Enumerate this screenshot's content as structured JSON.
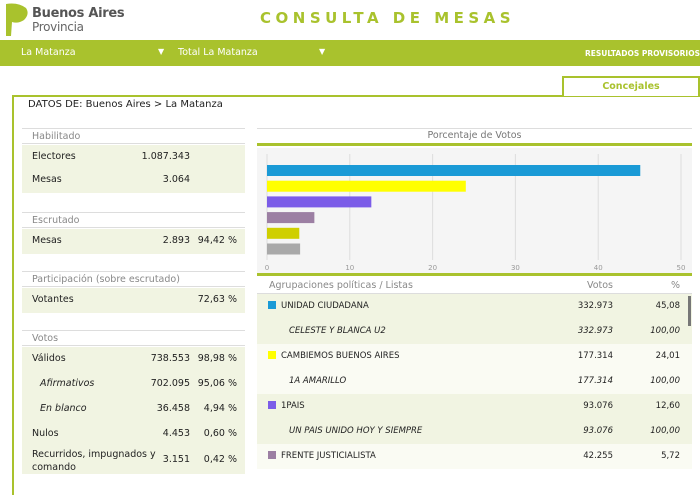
{
  "brand": {
    "line1": "Buenos Aires",
    "line2": "Provincia"
  },
  "header": {
    "title": "CONSULTA DE MESAS"
  },
  "nav": {
    "district": "La Matanza",
    "scope": "Total La Matanza",
    "status": "RESULTADOS PROVISORIOS"
  },
  "tab": "Concejales",
  "breadcrumb": "DATOS DE: Buenos Aires > La Matanza",
  "sections": [
    {
      "title": "Habilitado",
      "rows": [
        {
          "label": "Electores",
          "value": "1.087.343",
          "pct": ""
        },
        {
          "label": "Mesas",
          "value": "3.064",
          "pct": ""
        }
      ]
    },
    {
      "title": "Escrutado",
      "rows": [
        {
          "label": "Mesas",
          "value": "2.893",
          "pct": "94,42 %"
        }
      ]
    },
    {
      "title": "Participación (sobre escrutado)",
      "rows": [
        {
          "label": "Votantes",
          "value": "",
          "pct": "72,63 %"
        }
      ]
    },
    {
      "title": "Votos",
      "rows": [
        {
          "label": "Válidos",
          "value": "738.553",
          "pct": "98,98 %"
        },
        {
          "label": "Afirmativos",
          "value": "702.095",
          "pct": "95,06 %",
          "italic": true
        },
        {
          "label": "En blanco",
          "value": "36.458",
          "pct": "4,94 %",
          "italic": true
        },
        {
          "label": "Nulos",
          "value": "4.453",
          "pct": "0,60 %"
        },
        {
          "label": "Recurridos, impugnados y comando",
          "value": "3.151",
          "pct": "0,42 %"
        }
      ]
    }
  ],
  "chart_data": {
    "type": "bar",
    "orientation": "horizontal",
    "title": "Porcentaje de Votos",
    "xlim": [
      0,
      50
    ],
    "ticks": [
      "0",
      "10",
      "20",
      "30",
      "40",
      "50"
    ],
    "grid": true,
    "values": [
      45.08,
      24.01,
      12.6,
      5.72,
      3.9,
      4.0
    ],
    "colors": [
      "#1a9ad6",
      "#ffff00",
      "#7b5ce8",
      "#9c7fa3",
      "#cfcf00",
      "#a9a9a9"
    ]
  },
  "table": {
    "headers": [
      "Agrupaciones políticas / Listas",
      "Votos",
      "%"
    ],
    "rows": [
      {
        "name": "UNIDAD CIUDADANA",
        "votes": "332.973",
        "pct": "45,08",
        "color": "#1a9ad6",
        "sub": false
      },
      {
        "name": "CELESTE Y BLANCA U2",
        "votes": "332.973",
        "pct": "100,00",
        "sub": true
      },
      {
        "name": "CAMBIEMOS BUENOS AIRES",
        "votes": "177.314",
        "pct": "24,01",
        "color": "#ffff00",
        "sub": false
      },
      {
        "name": "1A AMARILLO",
        "votes": "177.314",
        "pct": "100,00",
        "sub": true
      },
      {
        "name": "1PAIS",
        "votes": "93.076",
        "pct": "12,60",
        "color": "#7b5ce8",
        "sub": false
      },
      {
        "name": "UN PAIS UNIDO HOY Y SIEMPRE",
        "votes": "93.076",
        "pct": "100,00",
        "sub": true
      },
      {
        "name": "FRENTE JUSTICIALISTA",
        "votes": "42.255",
        "pct": "5,72",
        "color": "#9c7fa3",
        "sub": false
      }
    ]
  }
}
